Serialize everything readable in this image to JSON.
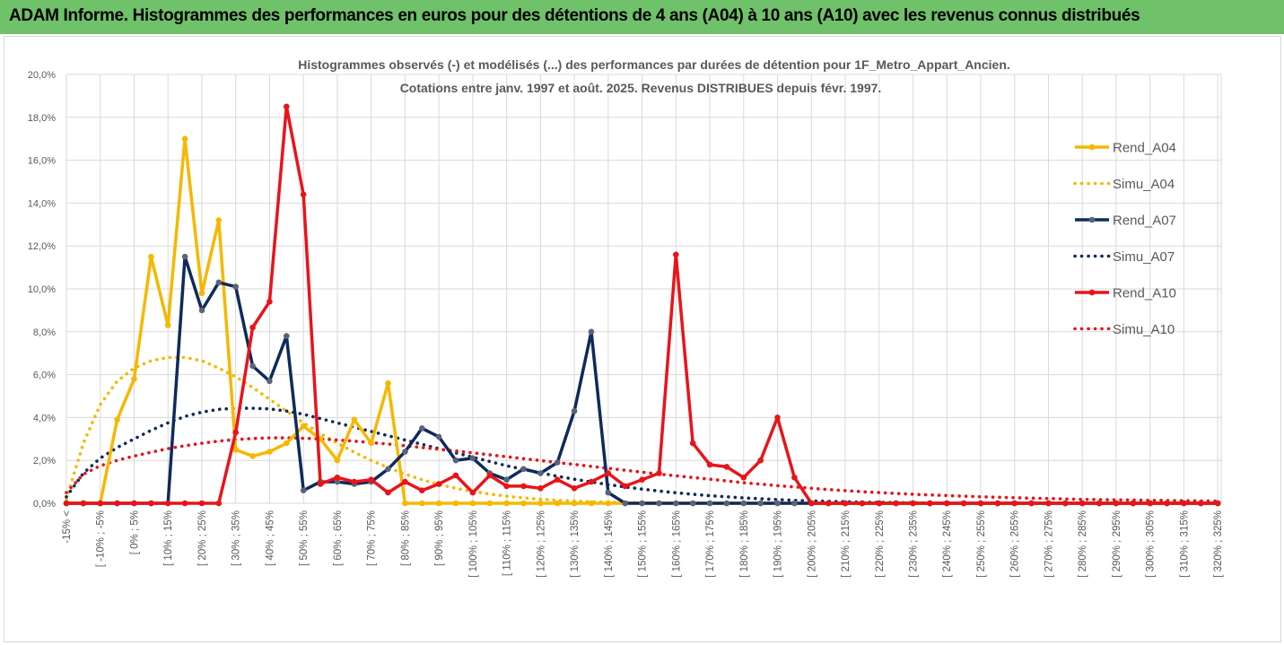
{
  "banner": {
    "title": "ADAM Informe. Histogrammes des performances en euros pour des détentions de 4 ans (A04) à 10 ans (A10) avec les revenus connus distribués",
    "background": "#6fc16a"
  },
  "chart_data": {
    "type": "line",
    "title": "Histogrammes observés (-) et modélisés (...) des performances par durées de détention pour 1F_Metro_Appart_Ancien.",
    "subtitle": "Cotations entre janv. 1997 et août. 2025. Revenus DISTRIBUES depuis févr. 1997.",
    "ylim": [
      0,
      20
    ],
    "y_ticks": [
      "0,0%",
      "2,0%",
      "4,0%",
      "6,0%",
      "8,0%",
      "10,0%",
      "12,0%",
      "14,0%",
      "16,0%",
      "18,0%",
      "20,0%"
    ],
    "x_tick_labels": [
      "-15% <",
      "[ -10% ; -5%",
      "[ 0% ; 5%",
      "[ 10% ; 15%",
      "[ 20% ; 25%",
      "[ 30% ; 35%",
      "[ 40% ; 45%",
      "[ 50% ; 55%",
      "[ 60% ; 65%",
      "[ 70% ; 75%",
      "[ 80% ; 85%",
      "[ 90% ; 95%",
      "[ 100% ; 105%",
      "[ 110% ; 115%",
      "[ 120% ; 125%",
      "[ 130% ; 135%",
      "[ 140% ; 145%",
      "[ 150% ; 155%",
      "[ 160% ; 165%",
      "[ 170% ; 175%",
      "[ 180% ; 185%",
      "[ 190% ; 195%",
      "[ 200% ; 205%",
      "[ 210% ; 215%",
      "[ 220% ; 225%",
      "[ 230% ; 235%",
      "[ 240% ; 245%",
      "[ 250% ; 255%",
      "[ 260% ; 265%",
      "[ 270% ; 275%",
      "[ 280% ; 285%",
      "[ 290% ; 295%",
      "[ 300% ; 305%",
      "[ 310% ; 315%",
      "[ 320% ; 325%"
    ],
    "n_categories": 69,
    "grid": true,
    "legend_position": "right",
    "series": [
      {
        "name": "Rend_A04",
        "style": "solid",
        "color": "#f5b800",
        "values": [
          0,
          0,
          0,
          3.9,
          5.8,
          11.5,
          8.3,
          17.0,
          9.8,
          13.2,
          2.5,
          2.2,
          2.4,
          2.8,
          3.6,
          3.0,
          2.0,
          3.9,
          2.8,
          5.6,
          0,
          0,
          0,
          0,
          0,
          0,
          0,
          0,
          0,
          0,
          0,
          0,
          0,
          0,
          0,
          0,
          0,
          0,
          0,
          0,
          0,
          0,
          0,
          0,
          0,
          0,
          0,
          0,
          0,
          0,
          0,
          0,
          0,
          0,
          0,
          0,
          0,
          0,
          0,
          0,
          0,
          0,
          0,
          0,
          0,
          0,
          0,
          0,
          0
        ]
      },
      {
        "name": "Simu_A04",
        "style": "dotted",
        "color": "#f5b800",
        "values": [
          0.2,
          2.8,
          4.6,
          5.7,
          6.3,
          6.65,
          6.8,
          6.8,
          6.65,
          6.3,
          5.9,
          5.4,
          4.85,
          4.3,
          3.75,
          3.25,
          2.8,
          2.38,
          2.0,
          1.66,
          1.36,
          1.1,
          0.88,
          0.7,
          0.55,
          0.43,
          0.33,
          0.25,
          0.19,
          0.14,
          0.1,
          0.07,
          0.05,
          0.03,
          0.02,
          0.01,
          0,
          0,
          0,
          0,
          0,
          0,
          0,
          0,
          0,
          0,
          0,
          0,
          0,
          0,
          0,
          0,
          0,
          0,
          0,
          0,
          0,
          0,
          0,
          0,
          0,
          0,
          0,
          0,
          0,
          0,
          0,
          0,
          0
        ]
      },
      {
        "name": "Rend_A07",
        "style": "solid",
        "color": "#0f2a5c",
        "values": [
          0,
          0,
          0,
          0,
          0,
          0,
          0,
          11.5,
          9.0,
          10.3,
          10.1,
          6.4,
          5.7,
          7.8,
          0.6,
          1.0,
          1.0,
          0.9,
          1.0,
          1.6,
          2.4,
          3.5,
          3.1,
          2.0,
          2.1,
          1.4,
          1.1,
          1.6,
          1.4,
          1.9,
          4.3,
          8.0,
          0.5,
          0,
          0,
          0,
          0,
          0,
          0,
          0,
          0,
          0,
          0,
          0,
          0,
          0,
          0,
          0,
          0,
          0,
          0,
          0,
          0,
          0,
          0,
          0,
          0,
          0,
          0,
          0,
          0,
          0,
          0,
          0,
          0,
          0,
          0,
          0,
          0
        ]
      },
      {
        "name": "Simu_A07",
        "style": "dotted",
        "color": "#0f2a5c",
        "values": [
          0.3,
          1.4,
          2.1,
          2.6,
          3.0,
          3.4,
          3.75,
          4.05,
          4.25,
          4.38,
          4.43,
          4.43,
          4.4,
          4.3,
          4.15,
          3.95,
          3.75,
          3.55,
          3.35,
          3.15,
          2.95,
          2.75,
          2.55,
          2.35,
          2.15,
          1.95,
          1.75,
          1.58,
          1.42,
          1.26,
          1.12,
          0.99,
          0.87,
          0.76,
          0.66,
          0.57,
          0.49,
          0.42,
          0.35,
          0.3,
          0.25,
          0.21,
          0.17,
          0.14,
          0.11,
          0.09,
          0.07,
          0.05,
          0.04,
          0.03,
          0.02,
          0.01,
          0,
          0,
          0,
          0,
          0,
          0,
          0,
          0,
          0,
          0,
          0,
          0,
          0,
          0,
          0,
          0,
          0
        ]
      },
      {
        "name": "Rend_A10",
        "style": "solid",
        "color": "#e8141a",
        "values": [
          0,
          0,
          0,
          0,
          0,
          0,
          0,
          0,
          0,
          0,
          3.3,
          8.2,
          9.4,
          18.5,
          14.4,
          0.9,
          1.2,
          1.0,
          1.1,
          0.5,
          1.0,
          0.6,
          0.9,
          1.3,
          0.5,
          1.3,
          0.8,
          0.8,
          0.7,
          1.1,
          0.7,
          1.0,
          1.4,
          0.8,
          1.1,
          1.4,
          11.6,
          2.8,
          1.8,
          1.7,
          1.2,
          2.0,
          4.0,
          1.2,
          0,
          0,
          0,
          0,
          0,
          0,
          0,
          0,
          0,
          0,
          0,
          0,
          0,
          0,
          0,
          0,
          0,
          0,
          0,
          0,
          0,
          0,
          0,
          0,
          0
        ]
      },
      {
        "name": "Simu_A10",
        "style": "dotted",
        "color": "#e8141a",
        "values": [
          0.5,
          1.35,
          1.75,
          2.0,
          2.2,
          2.38,
          2.55,
          2.68,
          2.8,
          2.9,
          2.97,
          3.02,
          3.05,
          3.05,
          3.03,
          3.0,
          2.95,
          2.9,
          2.83,
          2.76,
          2.68,
          2.6,
          2.52,
          2.44,
          2.35,
          2.26,
          2.17,
          2.08,
          1.99,
          1.9,
          1.81,
          1.72,
          1.63,
          1.54,
          1.45,
          1.36,
          1.28,
          1.2,
          1.12,
          1.04,
          0.96,
          0.89,
          0.82,
          0.76,
          0.7,
          0.64,
          0.59,
          0.54,
          0.5,
          0.46,
          0.42,
          0.39,
          0.36,
          0.33,
          0.3,
          0.28,
          0.26,
          0.24,
          0.22,
          0.2,
          0.18,
          0.17,
          0.16,
          0.15,
          0.14,
          0.13,
          0.12,
          0.11,
          0.1
        ]
      }
    ]
  }
}
